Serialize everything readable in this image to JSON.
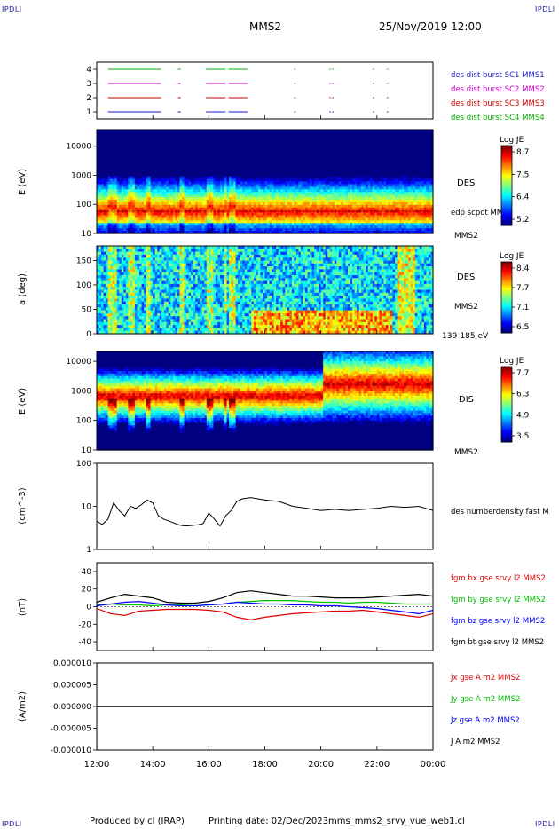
{
  "header": {
    "corner_tl": "IPDLI",
    "corner_tr": "IPDLI",
    "corner_bl": "IPDLI",
    "corner_br": "IPDLI",
    "spacecraft": "MMS2",
    "datetime": "25/Nov/2019 12:00"
  },
  "footer": {
    "produced": "Produced by cl (IRAP)",
    "printed": "Printing date: 02/Dec/2023",
    "file": "mms_mms2_srvy_vue_web1.cl"
  },
  "colors": {
    "mms1": "#1a1ad0",
    "mms2": "#d000d0",
    "mms3": "#d00000",
    "mms4": "#00b000",
    "bx": "#e00000",
    "by": "#00c000",
    "bz": "#0000ff",
    "bt": "#000000"
  },
  "chart_data": [
    {
      "type": "line",
      "name": "burst_availability",
      "ylim": [
        0.5,
        4.5
      ],
      "yticks": [
        "1",
        "2",
        "3",
        "4"
      ],
      "legend": [
        {
          "label": "des dist burst SC1 MMS1",
          "color": "#1a1ad0"
        },
        {
          "label": "des dist burst SC2 MMS2",
          "color": "#d000d0"
        },
        {
          "label": "des dist burst SC3 MMS3",
          "color": "#d00000"
        },
        {
          "label": "des dist burst SC4 MMS4",
          "color": "#00b000"
        }
      ],
      "segments_hours": [
        [
          0.4,
          2.2
        ],
        [
          2.2,
          2.3
        ],
        [
          2.9,
          3.0
        ],
        [
          3.9,
          4.6
        ],
        [
          4.7,
          5.4
        ],
        [
          7.05,
          7.1
        ],
        [
          8.3,
          8.35
        ],
        [
          8.4,
          8.45
        ],
        [
          9.85,
          9.9
        ],
        [
          10.35,
          10.4
        ]
      ]
    },
    {
      "type": "heatmap",
      "name": "des_energy_spectrogram",
      "ylabel": "E (eV)",
      "ylim": [
        10,
        30000
      ],
      "yscale": "log",
      "yticks": [
        "10",
        "100",
        "1000",
        "10000"
      ],
      "colorbar": {
        "title": "Log JE",
        "ticks": [
          "8.7",
          "7.5",
          "6.4",
          "5.2"
        ]
      },
      "right_labels": [
        "DES",
        "edp scpot MMS2",
        "MMS2"
      ]
    },
    {
      "type": "heatmap",
      "name": "des_pitch_angle",
      "ylabel": "a (deg)",
      "ylim": [
        0,
        180
      ],
      "yticks": [
        "0",
        "50",
        "100",
        "150"
      ],
      "colorbar": {
        "title": "Log JE",
        "ticks": [
          "8.4",
          "7.7",
          "7.1",
          "6.5"
        ]
      },
      "right_labels": [
        "DES",
        "MMS2",
        "139-185 eV"
      ]
    },
    {
      "type": "heatmap",
      "name": "dis_energy_spectrogram",
      "ylabel": "E (eV)",
      "ylim": [
        10,
        30000
      ],
      "yscale": "log",
      "yticks": [
        "10",
        "100",
        "1000",
        "10000"
      ],
      "colorbar": {
        "title": "Log JE",
        "ticks": [
          "7.7",
          "6.3",
          "4.9",
          "3.5"
        ]
      },
      "right_labels": [
        "DIS",
        "MMS2"
      ]
    },
    {
      "type": "line",
      "name": "density",
      "ylabel": "(cm^-3)",
      "ylim": [
        1,
        100
      ],
      "yscale": "log",
      "yticks": [
        "1",
        "10",
        "100"
      ],
      "series": [
        {
          "name": "des numberdensity fast M",
          "color": "#000000",
          "x": [
            0.0,
            0.2,
            0.4,
            0.6,
            0.8,
            1.0,
            1.2,
            1.4,
            1.6,
            1.8,
            2.0,
            2.2,
            2.4,
            2.6,
            2.8,
            3.0,
            3.2,
            3.4,
            3.6,
            3.8,
            4.0,
            4.2,
            4.4,
            4.6,
            4.8,
            5.0,
            5.2,
            5.5,
            6.0,
            6.5,
            7.0,
            7.5,
            8.0,
            8.5,
            9.0,
            9.5,
            10.0,
            10.5,
            11.0,
            11.5,
            12.0
          ],
          "y": [
            4.5,
            3.8,
            5.0,
            12.0,
            8.0,
            6.0,
            10.0,
            9.0,
            11.0,
            14.0,
            12.0,
            6.0,
            5.0,
            4.5,
            4.0,
            3.6,
            3.5,
            3.6,
            3.7,
            4.0,
            7.0,
            5.0,
            3.5,
            6.0,
            8.0,
            13.0,
            15.0,
            16.0,
            14.0,
            13.0,
            10.0,
            9.0,
            8.0,
            8.5,
            8.0,
            8.5,
            9.0,
            10.0,
            9.5,
            10.0,
            8.0
          ]
        }
      ]
    },
    {
      "type": "line",
      "name": "magnetic_field",
      "ylabel": "(nT)",
      "ylim": [
        -50,
        50
      ],
      "yticks": [
        "-40",
        "-20",
        "0",
        "20",
        "40"
      ],
      "x": [
        0.0,
        0.5,
        1.0,
        1.5,
        2.0,
        2.5,
        3.0,
        3.5,
        4.0,
        4.5,
        5.0,
        5.5,
        6.0,
        6.5,
        7.0,
        7.5,
        8.0,
        8.5,
        9.0,
        9.5,
        10.0,
        10.5,
        11.0,
        11.5,
        12.0
      ],
      "series": [
        {
          "name": "fgm bx gse srvy l2 MMS2",
          "color": "#e00000",
          "values": [
            -2,
            -8,
            -10,
            -5,
            -4,
            -3,
            -3,
            -3,
            -4,
            -6,
            -12,
            -15,
            -12,
            -10,
            -8,
            -7,
            -6,
            -5,
            -5,
            -4,
            -6,
            -8,
            -10,
            -12,
            -8
          ]
        },
        {
          "name": "fgm by gse srvy l2 MMS2",
          "color": "#00c000",
          "values": [
            2,
            3,
            2,
            2,
            1,
            2,
            2,
            1,
            2,
            3,
            5,
            6,
            7,
            7,
            7,
            6,
            5,
            5,
            4,
            5,
            5,
            4,
            3,
            3,
            3
          ]
        },
        {
          "name": "fgm bz gse srvy l2 MMS2",
          "color": "#0000ff",
          "values": [
            1,
            3,
            5,
            6,
            4,
            2,
            1,
            1,
            2,
            3,
            5,
            4,
            3,
            3,
            2,
            2,
            1,
            1,
            0,
            -1,
            -2,
            -4,
            -6,
            -8,
            -4
          ]
        },
        {
          "name": "fgm bt gse srvy l2 MMS2",
          "color": "#000000",
          "values": [
            5,
            10,
            14,
            12,
            10,
            5,
            4,
            4,
            6,
            10,
            16,
            18,
            16,
            14,
            12,
            12,
            11,
            10,
            10,
            10,
            11,
            12,
            13,
            14,
            12
          ]
        }
      ]
    },
    {
      "type": "line",
      "name": "current_density",
      "ylabel": "(A/m2)",
      "ylim": [
        -1e-05,
        1e-05
      ],
      "yticks": [
        "0.000010",
        "0.000005",
        "0.000000",
        "-0.000005",
        "-0.000010"
      ],
      "series": [
        {
          "name": "Jx gse A m2 MMS2",
          "color": "#e00000"
        },
        {
          "name": "Jy gse A m2 MMS2",
          "color": "#00c000"
        },
        {
          "name": "Jz gse A m2 MMS2",
          "color": "#0000ff"
        },
        {
          "name": "J A m2 MMS2",
          "color": "#000000"
        }
      ]
    }
  ],
  "time_axis": {
    "start": "12:00",
    "end": "00:00",
    "ticks": [
      "12:00",
      "14:00",
      "16:00",
      "18:00",
      "20:00",
      "22:00",
      "00:00"
    ]
  }
}
